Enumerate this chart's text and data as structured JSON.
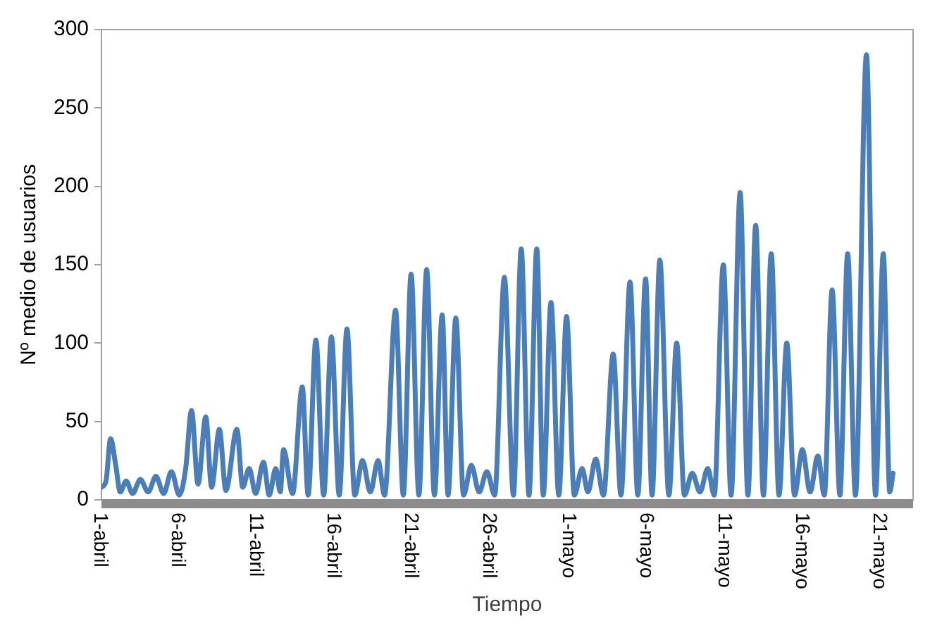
{
  "chart_data": {
    "type": "line",
    "xlabel": "Tiempo",
    "ylabel": "Nº medio de usuarios",
    "x": [
      "--04-01T00:00",
      "--04-01T07:00",
      "--04-01T14:00",
      "--04-01T22:00",
      "--04-02T05:00",
      "--04-02T14:00",
      "--04-03T00:00",
      "--04-03T12:00",
      "--04-04T00:00",
      "--04-04T12:00",
      "--04-05T00:00",
      "--04-05T12:00",
      "--04-06T00:00",
      "--04-06T10:00",
      "--04-06T19:00",
      "--04-07T05:00",
      "--04-07T17:00",
      "--04-08T02:00",
      "--04-08T14:00",
      "--04-09T00:00",
      "--04-09T17:00",
      "--04-10T02:00",
      "--04-10T12:00",
      "--04-10T22:00",
      "--04-11T10:00",
      "--04-11T19:00",
      "--04-12T05:00",
      "--04-12T12:00",
      "--04-12T17:00",
      "--04-13T07:00",
      "--04-13T22:00",
      "--04-14T07:00",
      "--04-14T19:00",
      "--04-15T07:00",
      "--04-15T19:00",
      "--04-16T07:00",
      "--04-16T19:00",
      "--04-17T07:00",
      "--04-17T19:00",
      "--04-18T07:00",
      "--04-18T19:00",
      "--04-19T05:00",
      "--04-19T22:00",
      "--04-20T10:00",
      "--04-20T22:00",
      "--04-21T10:00",
      "--04-21T22:00",
      "--04-22T10:00",
      "--04-22T22:00",
      "--04-23T07:00",
      "--04-23T19:00",
      "--04-24T07:00",
      "--04-24T19:00",
      "--04-25T07:00",
      "--04-25T19:00",
      "--04-26T07:00",
      "--04-26T22:00",
      "--04-27T12:00",
      "--04-28T00:00",
      "--04-28T12:00",
      "--04-29T00:00",
      "--04-29T10:00",
      "--04-29T22:00",
      "--04-30T10:00",
      "--04-30T22:00",
      "--05-01T10:00",
      "--05-01T22:00",
      "--05-02T07:00",
      "--05-02T19:00",
      "--05-03T07:00",
      "--05-03T22:00",
      "--05-04T10:00",
      "--05-05T00:00",
      "--05-05T12:00",
      "--05-06T00:00",
      "--05-06T10:00",
      "--05-06T22:00",
      "--05-07T12:00",
      "--05-08T00:00",
      "--05-08T12:00",
      "--05-09T00:00",
      "--05-09T12:00",
      "--05-10T00:00",
      "--05-10T10:00",
      "--05-11T00:00",
      "--05-11T12:00",
      "--05-12T02:00",
      "--05-12T14:00",
      "--05-13T02:00",
      "--05-13T14:00",
      "--05-14T02:00",
      "--05-14T14:00",
      "--05-15T02:00",
      "--05-15T14:00",
      "--05-16T02:00",
      "--05-16T14:00",
      "--05-17T02:00",
      "--05-17T12:00",
      "--05-18T00:00",
      "--05-18T12:00",
      "--05-19T00:00",
      "--05-19T12:00",
      "--05-20T05:00",
      "--05-20T19:00",
      "--05-21T07:00",
      "--05-21T17:00",
      "--05-21T22:00"
    ],
    "series": [
      {
        "color": "#4a7ebb",
        "values": [
          8,
          12,
          39,
          22,
          5,
          12,
          4,
          13,
          5,
          15,
          4,
          18,
          3,
          20,
          57,
          10,
          53,
          8,
          45,
          6,
          45,
          8,
          20,
          4,
          24,
          3,
          20,
          5,
          32,
          4,
          72,
          3,
          102,
          3,
          104,
          3,
          109,
          3,
          25,
          5,
          25,
          3,
          121,
          3,
          144,
          3,
          147,
          3,
          118,
          3,
          116,
          3,
          22,
          5,
          18,
          3,
          142,
          3,
          160,
          3,
          160,
          3,
          126,
          3,
          117,
          3,
          20,
          5,
          26,
          3,
          93,
          3,
          139,
          3,
          141,
          3,
          153,
          3,
          100,
          3,
          17,
          5,
          20,
          3,
          150,
          3,
          196,
          3,
          175,
          3,
          157,
          3,
          100,
          3,
          32,
          5,
          28,
          3,
          134,
          3,
          157,
          3,
          284,
          3,
          157,
          5,
          17
        ]
      }
    ],
    "xlim": [
      "--04-01T00:00",
      "--05-23T05:00"
    ],
    "xticks": [
      {
        "value": "--04-01T00:00",
        "label": "1-abril"
      },
      {
        "value": "--04-06T00:00",
        "label": "6-abril"
      },
      {
        "value": "--04-11T00:00",
        "label": "11-abril"
      },
      {
        "value": "--04-16T00:00",
        "label": "16-abril"
      },
      {
        "value": "--04-21T00:00",
        "label": "21-abril"
      },
      {
        "value": "--04-26T00:00",
        "label": "26-abril"
      },
      {
        "value": "--05-01T00:00",
        "label": "1-mayo"
      },
      {
        "value": "--05-06T00:00",
        "label": "6-mayo"
      },
      {
        "value": "--05-11T00:00",
        "label": "11-mayo"
      },
      {
        "value": "--05-16T00:00",
        "label": "16-mayo"
      },
      {
        "value": "--05-21T00:00",
        "label": "21-mayo"
      }
    ],
    "ylim": [
      0,
      300
    ],
    "yticks": [
      0,
      50,
      100,
      150,
      200,
      250,
      300
    ],
    "grid": false,
    "legend": false,
    "marker": "none"
  }
}
